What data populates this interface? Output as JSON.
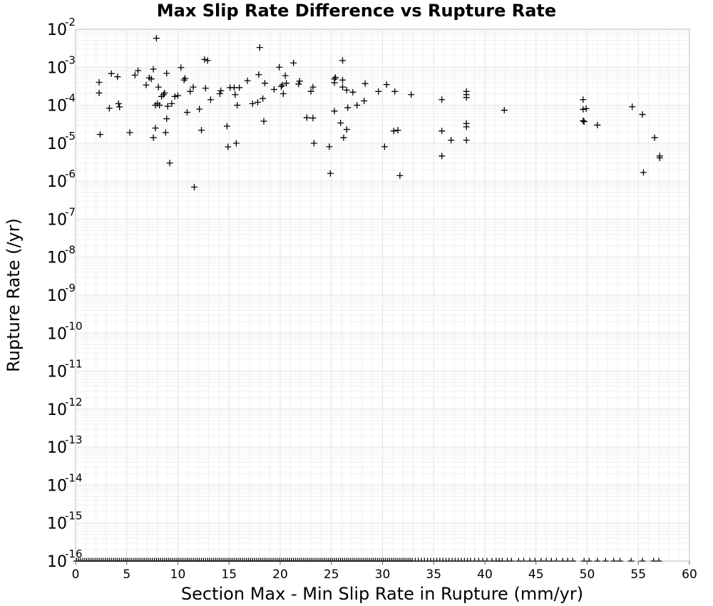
{
  "chart_data": {
    "type": "scatter",
    "title": "Max Slip Rate Difference vs Rupture Rate",
    "xlabel": "Section Max - Min Slip Rate in Rupture (mm/yr)",
    "ylabel": "Rupture Rate (/yr)",
    "xlim": [
      0,
      60
    ],
    "ylim_log10": [
      -16,
      -2
    ],
    "yscale": "log",
    "grid": true,
    "legend": "none",
    "marker": "plus",
    "marker_color": "#000000",
    "x_ticks": [
      "0",
      "5",
      "10",
      "15",
      "20",
      "25",
      "30",
      "35",
      "40",
      "45",
      "50",
      "55",
      "60"
    ],
    "y_ticks": [
      {
        "base": "10",
        "exp": "-2"
      },
      {
        "base": "10",
        "exp": "-3"
      },
      {
        "base": "10",
        "exp": "-4"
      },
      {
        "base": "10",
        "exp": "-5"
      },
      {
        "base": "10",
        "exp": "-6"
      },
      {
        "base": "10",
        "exp": "-7"
      },
      {
        "base": "10",
        "exp": "-8"
      },
      {
        "base": "10",
        "exp": "-9"
      },
      {
        "base": "10",
        "exp": "-10"
      },
      {
        "base": "10",
        "exp": "-11"
      },
      {
        "base": "10",
        "exp": "-12"
      },
      {
        "base": "10",
        "exp": "-13"
      },
      {
        "base": "10",
        "exp": "-14"
      },
      {
        "base": "10",
        "exp": "-15"
      },
      {
        "base": "10",
        "exp": "-16"
      }
    ],
    "points": [
      [
        2.3,
        0.0004
      ],
      [
        2.3,
        0.00021
      ],
      [
        2.4,
        1.7e-05
      ],
      [
        3.3,
        8.3e-05
      ],
      [
        3.5,
        0.00068
      ],
      [
        4.1,
        0.00056
      ],
      [
        4.2,
        0.00011
      ],
      [
        4.3,
        9e-05
      ],
      [
        5.3,
        1.9e-05
      ],
      [
        5.8,
        0.00062
      ],
      [
        6.1,
        0.00081
      ],
      [
        6.9,
        0.00034
      ],
      [
        7.2,
        0.00053
      ],
      [
        7.4,
        0.00049
      ],
      [
        7.6,
        0.00089
      ],
      [
        7.6,
        1.4e-05
      ],
      [
        7.8,
        2.5e-05
      ],
      [
        7.8,
        0.0001
      ],
      [
        7.9,
        0.0058
      ],
      [
        8.0,
        0.00011
      ],
      [
        8.1,
        0.0003
      ],
      [
        8.2,
        0.0001
      ],
      [
        8.4,
        0.00017
      ],
      [
        8.6,
        0.00019
      ],
      [
        8.7,
        0.00021
      ],
      [
        8.8,
        1.9e-05
      ],
      [
        8.9,
        0.00069
      ],
      [
        8.9,
        4.4e-05
      ],
      [
        9.0,
        9.4e-05
      ],
      [
        9.2,
        3e-06
      ],
      [
        9.4,
        0.00011
      ],
      [
        9.7,
        0.00017
      ],
      [
        10.0,
        0.00018
      ],
      [
        10.3,
        0.00098
      ],
      [
        10.6,
        0.00046
      ],
      [
        10.7,
        0.00051
      ],
      [
        10.9,
        6.5e-05
      ],
      [
        11.2,
        0.00023
      ],
      [
        11.5,
        0.0003
      ],
      [
        11.6,
        7e-07
      ],
      [
        12.1,
        7.9e-05
      ],
      [
        12.3,
        2.2e-05
      ],
      [
        12.6,
        0.0016
      ],
      [
        12.7,
        0.00028
      ],
      [
        12.9,
        0.0015
      ],
      [
        13.2,
        0.00014
      ],
      [
        14.1,
        0.0002
      ],
      [
        14.2,
        0.00024
      ],
      [
        14.8,
        2.8e-05
      ],
      [
        14.9,
        8e-06
      ],
      [
        15.1,
        0.00029
      ],
      [
        15.5,
        0.00029
      ],
      [
        15.6,
        0.00019
      ],
      [
        15.7,
        1e-05
      ],
      [
        15.8,
        0.0001
      ],
      [
        16.0,
        0.00029
      ],
      [
        16.8,
        0.00044
      ],
      [
        17.3,
        0.00011
      ],
      [
        17.8,
        0.00012
      ],
      [
        17.9,
        0.00064
      ],
      [
        18.0,
        0.0033
      ],
      [
        18.3,
        0.00015
      ],
      [
        18.4,
        3.8e-05
      ],
      [
        18.5,
        0.00038
      ],
      [
        19.4,
        0.00026
      ],
      [
        19.9,
        0.001
      ],
      [
        20.1,
        0.00031
      ],
      [
        20.2,
        0.00034
      ],
      [
        20.3,
        0.0002
      ],
      [
        20.5,
        0.0006
      ],
      [
        20.6,
        0.00038
      ],
      [
        21.3,
        0.0013
      ],
      [
        21.8,
        0.00036
      ],
      [
        21.9,
        0.00043
      ],
      [
        22.6,
        4.7e-05
      ],
      [
        23.0,
        0.00023
      ],
      [
        23.2,
        0.0003
      ],
      [
        23.2,
        4.6e-05
      ],
      [
        23.3,
        1e-05
      ],
      [
        24.8,
        8.1e-06
      ],
      [
        24.9,
        1.6e-06
      ],
      [
        25.3,
        7e-05
      ],
      [
        25.3,
        0.00049
      ],
      [
        25.3,
        0.00039
      ],
      [
        25.4,
        0.00054
      ],
      [
        25.9,
        3.4e-05
      ],
      [
        26.1,
        0.0015
      ],
      [
        26.1,
        0.00046
      ],
      [
        26.1,
        0.0003
      ],
      [
        26.2,
        1.4e-05
      ],
      [
        26.5,
        2.3e-05
      ],
      [
        26.5,
        0.00025
      ],
      [
        26.6,
        8.6e-05
      ],
      [
        27.1,
        0.00022
      ],
      [
        27.5,
        0.0001
      ],
      [
        28.2,
        0.00013
      ],
      [
        28.3,
        0.00037
      ],
      [
        29.6,
        0.00023
      ],
      [
        30.2,
        8.1e-06
      ],
      [
        30.4,
        0.00035
      ],
      [
        31.1,
        2.1e-05
      ],
      [
        31.2,
        0.00023
      ],
      [
        31.5,
        2.2e-05
      ],
      [
        31.7,
        1.4e-06
      ],
      [
        32.8,
        0.00019
      ],
      [
        35.8,
        0.00014
      ],
      [
        35.8,
        2.1e-05
      ],
      [
        35.8,
        4.6e-06
      ],
      [
        36.7,
        1.2e-05
      ],
      [
        38.2,
        0.00023
      ],
      [
        38.2,
        0.00019
      ],
      [
        38.2,
        0.00016
      ],
      [
        38.2,
        3.3e-05
      ],
      [
        38.2,
        2.7e-05
      ],
      [
        38.2,
        1.2e-05
      ],
      [
        41.9,
        7.4e-05
      ],
      [
        49.6,
        0.00014
      ],
      [
        49.6,
        7.8e-05
      ],
      [
        49.6,
        3.9e-05
      ],
      [
        49.7,
        3.7e-05
      ],
      [
        49.9,
        8.1e-05
      ],
      [
        51.0,
        3e-05
      ],
      [
        54.4,
        9.1e-05
      ],
      [
        55.4,
        5.7e-05
      ],
      [
        55.5,
        1.7e-06
      ],
      [
        56.6,
        1.4e-05
      ],
      [
        57.1,
        4.6e-06
      ],
      [
        57.1,
        4.1e-06
      ]
    ],
    "floor_points_x": [
      0.1,
      0.3,
      0.5,
      0.7,
      0.9,
      1.1,
      1.3,
      1.5,
      1.7,
      1.9,
      2.1,
      2.3,
      2.5,
      2.7,
      2.9,
      3.1,
      3.3,
      3.5,
      3.7,
      3.9,
      4.1,
      4.3,
      4.5,
      4.7,
      4.9,
      5.1,
      5.3,
      5.5,
      5.7,
      5.9,
      6.1,
      6.3,
      6.5,
      6.7,
      6.9,
      7.1,
      7.3,
      7.5,
      7.7,
      7.9,
      8.1,
      8.3,
      8.5,
      8.7,
      8.9,
      9.1,
      9.3,
      9.5,
      9.7,
      9.9,
      10.1,
      10.3,
      10.5,
      10.7,
      10.9,
      11.1,
      11.3,
      11.5,
      11.7,
      11.9,
      12.1,
      12.3,
      12.5,
      12.7,
      12.9,
      13.1,
      13.3,
      13.5,
      13.7,
      13.9,
      14.1,
      14.3,
      14.5,
      14.7,
      14.9,
      15.1,
      15.3,
      15.5,
      15.7,
      15.9,
      16.1,
      16.3,
      16.5,
      16.7,
      16.9,
      17.1,
      17.3,
      17.5,
      17.7,
      17.9,
      18.1,
      18.3,
      18.5,
      18.7,
      18.9,
      19.1,
      19.3,
      19.5,
      19.7,
      19.9,
      20.1,
      20.3,
      20.5,
      20.7,
      20.9,
      21.1,
      21.3,
      21.5,
      21.7,
      21.9,
      22.1,
      22.3,
      22.5,
      22.7,
      22.9,
      23.1,
      23.3,
      23.5,
      23.7,
      23.9,
      24.1,
      24.3,
      24.5,
      24.7,
      24.9,
      25.1,
      25.3,
      25.5,
      25.7,
      25.9,
      26.1,
      26.3,
      26.5,
      26.7,
      26.9,
      27.1,
      27.3,
      27.5,
      27.7,
      27.9,
      28.1,
      28.3,
      28.5,
      28.7,
      28.9,
      29.1,
      29.3,
      29.5,
      29.7,
      29.9,
      30.1,
      30.3,
      30.5,
      30.7,
      30.9,
      31.1,
      31.3,
      31.5,
      31.7,
      31.9,
      32.1,
      32.3,
      32.5,
      32.7,
      32.9,
      33.2,
      33.5,
      33.8,
      34.1,
      34.4,
      34.7,
      35.0,
      35.3,
      35.6,
      35.9,
      36.2,
      36.5,
      36.8,
      37.1,
      37.4,
      37.7,
      38.0,
      38.3,
      38.6,
      39.0,
      39.4,
      39.8,
      40.2,
      40.7,
      41.1,
      41.4,
      41.7,
      42.2,
      42.6,
      43.3,
      43.8,
      44.4,
      44.9,
      45.5,
      46.0,
      46.5,
      47.0,
      47.6,
      48.1,
      48.6,
      49.7,
      50.2,
      51.0,
      51.8,
      52.6,
      53.2,
      54.3,
      55.4,
      56.5,
      57.0
    ]
  }
}
